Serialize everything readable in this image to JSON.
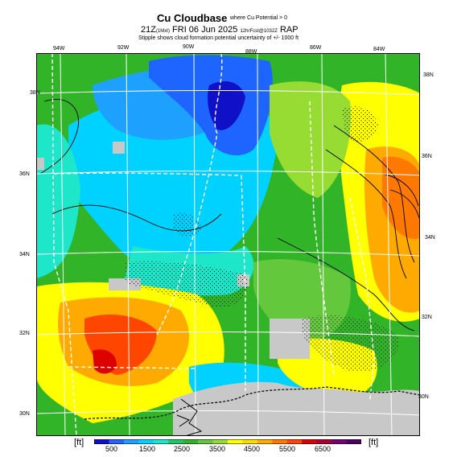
{
  "header": {
    "title": "Cu Cloudbase",
    "title_note": "where Cu Potential > 0",
    "valid_time": "21Z",
    "valid_tz": "(1Mxt)",
    "valid_date": "FRI 06 Jun 2025",
    "init_info": "12hrFcst@1032Z",
    "model": "RAP",
    "subtitle": "Stipple shows cloud formation potential uncertainty of +/- 1000 ft"
  },
  "map": {
    "lon_labels": [
      "94W",
      "92W",
      "90W",
      "88W",
      "86W",
      "84W"
    ],
    "lat_labels_left": [
      "36N",
      "34N",
      "32N",
      "30N"
    ],
    "lat_labels_right": [
      "36N",
      "34N",
      "32N",
      "30N"
    ],
    "corner_label_left": "38N",
    "corner_label_right": "38N",
    "land_mask_color": "#c8c8c8",
    "grid_color": "#ffffff",
    "contour_color": "#000000"
  },
  "colorbar": {
    "unit_left": "[ft]",
    "unit_right": "[ft]",
    "tick_labels": [
      "500",
      "1500",
      "2500",
      "3500",
      "4500",
      "5500",
      "6500"
    ],
    "colors": [
      "#1010c8",
      "#1e64ff",
      "#1ea0ff",
      "#00d2ff",
      "#1ee6c8",
      "#1ec864",
      "#32b428",
      "#64c83c",
      "#96dc32",
      "#ffff00",
      "#ffdc00",
      "#ffaa00",
      "#ff7800",
      "#ff4600",
      "#dc0000",
      "#aa0032",
      "#780078",
      "#500064"
    ]
  }
}
